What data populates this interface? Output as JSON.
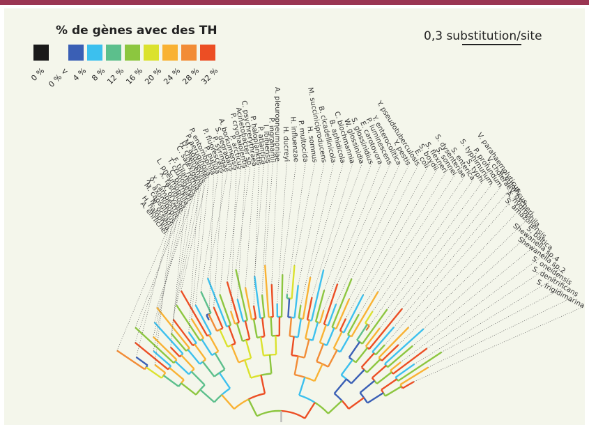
{
  "legend": {
    "title": "% de gènes avec des TH",
    "labels": [
      "0 %",
      "0 % <",
      "4 %",
      "8 %",
      "12 %",
      "16 %",
      "20 %",
      "24 %",
      "28 %",
      "32 %"
    ],
    "colors": [
      "#1a1a1a",
      "#3a5fb5",
      "#3cc0ee",
      "#5cbf8c",
      "#8cc63f",
      "#dbe22e",
      "#f9b233",
      "#f28c36",
      "#ec4e24"
    ]
  },
  "scale_bar": "0,3 substitution/site",
  "species": [
    "A. ehrlichei",
    "H. halophila",
    "N. oceani",
    "M. capsulatus",
    "X. axonopodis",
    "X. campestris",
    "X. oryzae",
    "X. fastidiosa",
    "L. pneumophila",
    "C. burnetii",
    "T. crunogena",
    "F. tularensis",
    "C. ruthia",
    "C. salexigens",
    "H. chejuensis",
    "M. aquaeolei",
    "P. aeruginosa",
    "P. entomophila",
    "P. putida",
    "P. fluorescens",
    "P. syringae",
    "S. degradans",
    "A. borkumensis",
    "P. arcticus",
    "P. cryohalolentis",
    "Acinetobacter sp.",
    "C. psychrerythraea",
    "P. haloplanktis",
    "P. atlantica",
    "I. loihiensis",
    "P. ingrahamii",
    "A. pleuropneumoniae",
    "H. ducreyi",
    "H. influenzae",
    "P. multocida",
    "H. somnus",
    "M. succiniciproducens",
    "B. cicadellinicola",
    "B. aphidicola",
    "C. blochmannia",
    "W. glossinidia",
    "S. glossinidius",
    "E. carotovora",
    "P. luminescens",
    "Y. enterocolitica",
    "Y. pestis",
    "Y. pseudotuberculosis",
    "E. coli",
    "S. boydii",
    "S. flexneri",
    "S. sonnei",
    "S. dysenteriae",
    "S. enterica",
    "S. typhi",
    "S. typhimurium",
    "P. profundum",
    "V. cholerae",
    "V. parahaemolyticus",
    "V. vulnificus",
    "V. fischeri",
    "A. hydrophila",
    "S. amazonensis",
    "S. baltica",
    "Shewanella sp.4",
    "Shewanella sp.2",
    "S. oneidensis",
    "S. denitrificans",
    "S. frigidimarina"
  ]
}
